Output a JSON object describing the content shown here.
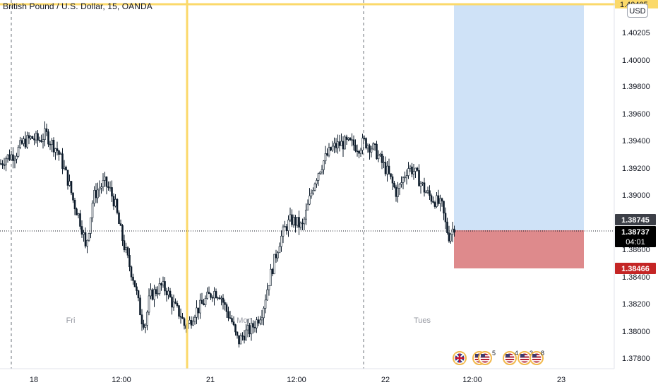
{
  "header": {
    "title": "British Pound / U.S. Dollar, 15, OANDA",
    "currency_button": "USD"
  },
  "price_axis": {
    "ticks": [
      "1.40205",
      "1.40000",
      "1.39800",
      "1.39600",
      "1.39400",
      "1.39200",
      "1.39000",
      "1.38600",
      "1.38400",
      "1.38200",
      "1.38000",
      "1.37800"
    ],
    "top_label": "1.40405"
  },
  "time_axis": {
    "ticks": [
      "18",
      "12:00",
      "21",
      "12:00",
      "22",
      "12:00",
      "23"
    ]
  },
  "day_labels": [
    "Fri",
    "Mon",
    "Tues"
  ],
  "badges": {
    "target": "1.38745",
    "current_price": "1.38737",
    "countdown": "04:01",
    "stop": "1.38466"
  },
  "colors": {
    "up_candle": "#ffffff",
    "down_candle": "#0d1b2a",
    "wick": "#0d1b2a",
    "profit_zone": "#cfe2f7",
    "loss_zone": "#de8a8c",
    "highlight_line": "#fbd96a",
    "target_badge": "#3c3f47",
    "current_badge": "#000000",
    "stop_badge": "#c42525"
  },
  "event_icons": [
    {
      "icon": "uk-flag-icon",
      "count": ""
    },
    {
      "icon": "us-flag-icon",
      "count": "5"
    },
    {
      "icon": "us-flag-icon",
      "count": "4"
    },
    {
      "icon": "us-flag-icon",
      "count": "3"
    },
    {
      "icon": "us-flag-icon",
      "count": "8"
    }
  ],
  "chart_data": {
    "type": "candlestick",
    "symbol": "British Pound / U.S. Dollar",
    "interval": "15",
    "source": "OANDA",
    "ylim": [
      1.3773,
      1.4041
    ],
    "path": [
      [
        0,
        1.392
      ],
      [
        8,
        1.3925
      ],
      [
        22,
        1.3928
      ],
      [
        32,
        1.3936
      ],
      [
        45,
        1.394
      ],
      [
        55,
        1.3938
      ],
      [
        65,
        1.3943
      ],
      [
        72,
        1.3937
      ],
      [
        82,
        1.393
      ],
      [
        90,
        1.3918
      ],
      [
        98,
        1.3905
      ],
      [
        104,
        1.3892
      ],
      [
        112,
        1.388
      ],
      [
        118,
        1.3868
      ],
      [
        121,
        1.3856
      ],
      [
        126,
        1.3872
      ],
      [
        132,
        1.3895
      ],
      [
        140,
        1.3902
      ],
      [
        148,
        1.3906
      ],
      [
        156,
        1.39
      ],
      [
        163,
        1.389
      ],
      [
        168,
        1.3876
      ],
      [
        175,
        1.386
      ],
      [
        182,
        1.3846
      ],
      [
        190,
        1.3832
      ],
      [
        196,
        1.3815
      ],
      [
        201,
        1.3803
      ],
      [
        206,
        1.38
      ],
      [
        212,
        1.382
      ],
      [
        220,
        1.3824
      ],
      [
        228,
        1.3828
      ],
      [
        236,
        1.3825
      ],
      [
        243,
        1.3816
      ],
      [
        250,
        1.381
      ],
      [
        256,
        1.3806
      ],
      [
        262,
        1.3797
      ],
      [
        268,
        1.38
      ],
      [
        275,
        1.3808
      ],
      [
        283,
        1.3812
      ],
      [
        292,
        1.3818
      ],
      [
        302,
        1.3824
      ],
      [
        312,
        1.3822
      ],
      [
        320,
        1.381
      ],
      [
        328,
        1.3802
      ],
      [
        334,
        1.379
      ],
      [
        338,
        1.3786
      ],
      [
        346,
        1.3792
      ],
      [
        355,
        1.3795
      ],
      [
        364,
        1.3802
      ],
      [
        372,
        1.381
      ],
      [
        380,
        1.383
      ],
      [
        388,
        1.3846
      ],
      [
        396,
        1.3862
      ],
      [
        404,
        1.3872
      ],
      [
        412,
        1.3878
      ],
      [
        420,
        1.3876
      ],
      [
        428,
        1.3872
      ],
      [
        436,
        1.3888
      ],
      [
        444,
        1.3905
      ],
      [
        452,
        1.3916
      ],
      [
        460,
        1.3924
      ],
      [
        470,
        1.3932
      ],
      [
        480,
        1.3935
      ],
      [
        490,
        1.3936
      ],
      [
        500,
        1.3935
      ],
      [
        508,
        1.3933
      ],
      [
        516,
        1.3937
      ],
      [
        524,
        1.3934
      ],
      [
        532,
        1.393
      ],
      [
        540,
        1.3922
      ],
      [
        548,
        1.3915
      ],
      [
        556,
        1.3905
      ],
      [
        562,
        1.3898
      ],
      [
        570,
        1.3908
      ],
      [
        578,
        1.3918
      ],
      [
        586,
        1.3915
      ],
      [
        594,
        1.3908
      ],
      [
        602,
        1.39
      ],
      [
        610,
        1.3895
      ],
      [
        618,
        1.3892
      ],
      [
        626,
        1.3888
      ],
      [
        632,
        1.3872
      ],
      [
        636,
        1.3866
      ],
      [
        640,
        1.387
      ],
      [
        644,
        1.3874
      ]
    ],
    "position": {
      "entry": 1.38745,
      "target": 1.4041,
      "stop": 1.38466
    },
    "highlight_price": 1.4041,
    "current_price": 1.38737
  }
}
